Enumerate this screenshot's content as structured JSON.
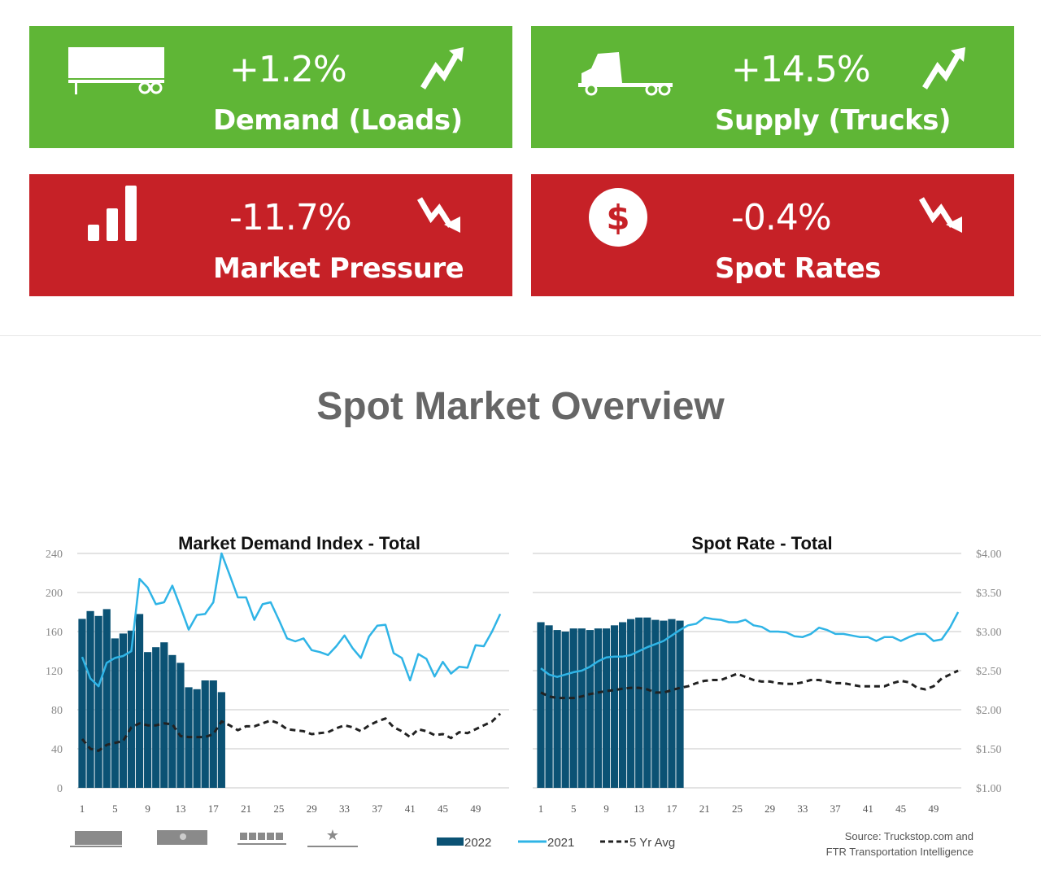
{
  "cards": [
    {
      "value": "+1.2%",
      "label": "Demand (Loads)",
      "icon": "trailer-icon",
      "trend": "trend-up-icon",
      "color": "#5fb636"
    },
    {
      "value": "+14.5%",
      "label": "Supply (Trucks)",
      "icon": "truck-icon",
      "trend": "trend-up-icon",
      "color": "#5fb636"
    },
    {
      "value": "-11.7%",
      "label": "Market Pressure",
      "icon": "bar-chart-icon",
      "trend": "trend-down-icon",
      "color": "#c62127"
    },
    {
      "value": "-0.4%",
      "label": "Spot Rates",
      "icon": "dollar-icon",
      "trend": "trend-down-icon",
      "color": "#c62127"
    }
  ],
  "section_title": "Spot Market Overview",
  "legend": {
    "items": [
      "2022",
      "2021",
      "5 Yr Avg"
    ],
    "equipment_icons": [
      "van-icon",
      "reefer-icon",
      "flatbed-icon",
      "specialized-icon"
    ]
  },
  "source": {
    "line1": "Source: Truckstop.com and",
    "line2": "FTR Transportation Intelligence"
  },
  "colors": {
    "2022": "#0b5274",
    "2021": "#2fb4e6",
    "5 Yr Avg": "#222222",
    "grid": "#e3e3e3"
  },
  "chart_data": [
    {
      "type": "bar+line",
      "title": "Market Demand Index - Total",
      "ylim": [
        0,
        240
      ],
      "yticks": [
        "0",
        "40",
        "80",
        "120",
        "160",
        "200",
        "240"
      ],
      "xticks": [
        "1",
        "5",
        "9",
        "13",
        "17",
        "21",
        "25",
        "29",
        "33",
        "37",
        "41",
        "45",
        "49"
      ],
      "grid": true,
      "series": [
        {
          "name": "2022",
          "type": "bar",
          "values": [
            173,
            181,
            176,
            183,
            153,
            158,
            161,
            178,
            139,
            144,
            149,
            136,
            128,
            103,
            101,
            110,
            110,
            98
          ]
        },
        {
          "name": "2021",
          "type": "line",
          "values": [
            134,
            112,
            104,
            128,
            133,
            135,
            140,
            214,
            205,
            188,
            190,
            207,
            185,
            162,
            177,
            178,
            190,
            240,
            218,
            195,
            195,
            172,
            188,
            190,
            172,
            153,
            150,
            153,
            141,
            139,
            136,
            145,
            156,
            143,
            133,
            155,
            166,
            167,
            138,
            133,
            110,
            137,
            132,
            114,
            129,
            117,
            124,
            123,
            146,
            145,
            160,
            178
          ]
        },
        {
          "name": "5 Yr Avg",
          "type": "dashed-line",
          "values": [
            50,
            40,
            38,
            44,
            46,
            48,
            62,
            66,
            64,
            64,
            66,
            65,
            53,
            52,
            52,
            52,
            55,
            68,
            64,
            59,
            63,
            63,
            66,
            69,
            66,
            60,
            59,
            58,
            55,
            56,
            57,
            61,
            64,
            62,
            58,
            64,
            68,
            71,
            62,
            58,
            52,
            60,
            58,
            54,
            55,
            51,
            57,
            56,
            60,
            64,
            68,
            76
          ]
        }
      ]
    },
    {
      "type": "bar+line",
      "title": "Spot Rate - Total",
      "ylim": [
        1.0,
        4.0
      ],
      "yticks": [
        "$1.00",
        "$1.50",
        "$2.00",
        "$2.50",
        "$3.00",
        "$3.50",
        "$4.00"
      ],
      "xticks": [
        "1",
        "5",
        "9",
        "13",
        "17",
        "21",
        "25",
        "29",
        "33",
        "37",
        "41",
        "45",
        "49"
      ],
      "grid": true,
      "series": [
        {
          "name": "2022",
          "type": "bar",
          "values": [
            3.12,
            3.08,
            3.02,
            3.0,
            3.04,
            3.04,
            3.02,
            3.04,
            3.04,
            3.08,
            3.12,
            3.16,
            3.18,
            3.18,
            3.15,
            3.14,
            3.16,
            3.14
          ]
        },
        {
          "name": "2021",
          "type": "line",
          "values": [
            2.53,
            2.45,
            2.42,
            2.45,
            2.48,
            2.5,
            2.55,
            2.62,
            2.67,
            2.68,
            2.68,
            2.7,
            2.75,
            2.8,
            2.84,
            2.88,
            2.95,
            3.02,
            3.08,
            3.1,
            3.18,
            3.16,
            3.15,
            3.12,
            3.12,
            3.15,
            3.08,
            3.06,
            3.0,
            3.0,
            2.99,
            2.94,
            2.93,
            2.97,
            3.05,
            3.02,
            2.97,
            2.97,
            2.95,
            2.93,
            2.93,
            2.88,
            2.93,
            2.93,
            2.88,
            2.93,
            2.97,
            2.97,
            2.88,
            2.9,
            3.05,
            3.25
          ]
        },
        {
          "name": "5 Yr Avg",
          "type": "dashed-line",
          "values": [
            2.22,
            2.17,
            2.15,
            2.15,
            2.15,
            2.17,
            2.2,
            2.22,
            2.24,
            2.25,
            2.27,
            2.28,
            2.28,
            2.26,
            2.22,
            2.22,
            2.25,
            2.28,
            2.3,
            2.34,
            2.37,
            2.38,
            2.38,
            2.42,
            2.46,
            2.42,
            2.38,
            2.36,
            2.36,
            2.34,
            2.33,
            2.33,
            2.35,
            2.38,
            2.38,
            2.36,
            2.34,
            2.34,
            2.32,
            2.3,
            2.3,
            2.3,
            2.3,
            2.34,
            2.37,
            2.35,
            2.28,
            2.26,
            2.3,
            2.4,
            2.45,
            2.5
          ]
        }
      ]
    }
  ]
}
